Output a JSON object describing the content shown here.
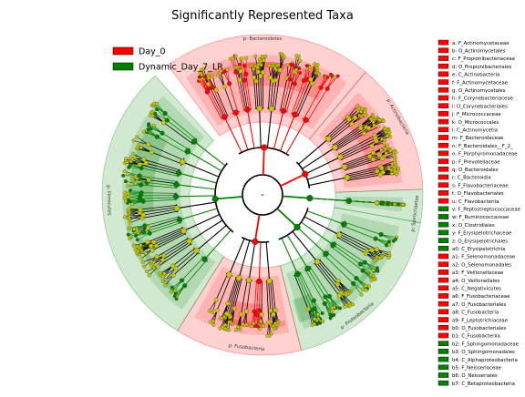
{
  "chart_data": {
    "type": "cladogram",
    "title": "Significantly Represented Taxa",
    "groups": [
      {
        "name": "Day_0",
        "color": "#ff0000"
      },
      {
        "name": "Dynamic_Day_7_LR",
        "color": "#008000"
      }
    ],
    "clade_labels": [
      {
        "text": "p: Bacteroidetes",
        "group": "Day_0"
      },
      {
        "text": "p: Actinobacteria",
        "group": "Day_0"
      },
      {
        "text": "p: Spirochaetes",
        "group": "Dynamic_Day_7_LR"
      },
      {
        "text": "p: Proteobacteria",
        "group": "Dynamic_Day_7_LR"
      },
      {
        "text": "p: Fusobacteria",
        "group": "Day_0"
      },
      {
        "text": "p: Firmicutes",
        "group": "Dynamic_Day_7_LR"
      }
    ],
    "key": [
      {
        "id": "a",
        "taxon": "F_Actinomycetaceae",
        "group": "Day_0"
      },
      {
        "id": "b",
        "taxon": "O_Actinomycetales",
        "group": "Day_0"
      },
      {
        "id": "c",
        "taxon": "F_Propionibacteriaceae",
        "group": "Day_0"
      },
      {
        "id": "d",
        "taxon": "O_Propionibacteriales",
        "group": "Day_0"
      },
      {
        "id": "e",
        "taxon": "C_Actinobacteria",
        "group": "Day_0"
      },
      {
        "id": "f",
        "taxon": "F_Actinomycetaceae",
        "group": "Day_0"
      },
      {
        "id": "g",
        "taxon": "O_Actinomycetales",
        "group": "Day_0"
      },
      {
        "id": "h",
        "taxon": "F_Corynebacteriaceae",
        "group": "Day_0"
      },
      {
        "id": "i",
        "taxon": "O_Corynebacteriales",
        "group": "Day_0"
      },
      {
        "id": "j",
        "taxon": "F_Micrococcaceae",
        "group": "Day_0"
      },
      {
        "id": "k",
        "taxon": "O_Micrococcales",
        "group": "Day_0"
      },
      {
        "id": "l",
        "taxon": "C_Actinomycetia",
        "group": "Day_0"
      },
      {
        "id": "m",
        "taxon": "F_Bacteroidaceae",
        "group": "Day_0"
      },
      {
        "id": "n",
        "taxon": "F_Bacteroidales__F_2_",
        "group": "Day_0"
      },
      {
        "id": "o",
        "taxon": "F_Porphyromonadaceae",
        "group": "Day_0"
      },
      {
        "id": "p",
        "taxon": "F_Prevotellaceae",
        "group": "Day_0"
      },
      {
        "id": "q",
        "taxon": "O_Bacteroidales",
        "group": "Day_0"
      },
      {
        "id": "r",
        "taxon": "C_Bacteroidia",
        "group": "Day_0"
      },
      {
        "id": "s",
        "taxon": "F_Flavobacteriaceae",
        "group": "Day_0"
      },
      {
        "id": "t",
        "taxon": "O_Flavobacteriales",
        "group": "Day_0"
      },
      {
        "id": "u",
        "taxon": "C_Flavobacteriia",
        "group": "Day_0"
      },
      {
        "id": "v",
        "taxon": "F_Peptostreptococcaceae",
        "group": "Dynamic_Day_7_LR"
      },
      {
        "id": "w",
        "taxon": "F_Ruminococcaceae",
        "group": "Dynamic_Day_7_LR"
      },
      {
        "id": "x",
        "taxon": "O_Clostridiales",
        "group": "Dynamic_Day_7_LR"
      },
      {
        "id": "y",
        "taxon": "F_Erysipelotrichaceae",
        "group": "Dynamic_Day_7_LR"
      },
      {
        "id": "z",
        "taxon": "O_Erysipelotrichales",
        "group": "Dynamic_Day_7_LR"
      },
      {
        "id": "a0",
        "taxon": "C_Erysipelotrichia",
        "group": "Dynamic_Day_7_LR"
      },
      {
        "id": "a1",
        "taxon": "F_Selenomonadaceae",
        "group": "Day_0"
      },
      {
        "id": "a2",
        "taxon": "O_Selenomonadales",
        "group": "Day_0"
      },
      {
        "id": "a3",
        "taxon": "F_Veillonellaceae",
        "group": "Day_0"
      },
      {
        "id": "a4",
        "taxon": "O_Veillonellales",
        "group": "Day_0"
      },
      {
        "id": "a5",
        "taxon": "C_Negativicutes",
        "group": "Day_0"
      },
      {
        "id": "a6",
        "taxon": "F_Fusobacteriaceae",
        "group": "Day_0"
      },
      {
        "id": "a7",
        "taxon": "O_Fusobacteriales",
        "group": "Day_0"
      },
      {
        "id": "a8",
        "taxon": "C_Fusobacteria",
        "group": "Day_0"
      },
      {
        "id": "a9",
        "taxon": "F_Leptotrichiaceae",
        "group": "Day_0"
      },
      {
        "id": "b0",
        "taxon": "O_Fusobacteriales",
        "group": "Day_0"
      },
      {
        "id": "b1",
        "taxon": "C_Fusobacteriia",
        "group": "Day_0"
      },
      {
        "id": "b2",
        "taxon": "F_Sphingomonadaceae",
        "group": "Dynamic_Day_7_LR"
      },
      {
        "id": "b3",
        "taxon": "O_Sphingomonadales",
        "group": "Dynamic_Day_7_LR"
      },
      {
        "id": "b4",
        "taxon": "C_Alphaproteobacteria",
        "group": "Dynamic_Day_7_LR"
      },
      {
        "id": "b5",
        "taxon": "F_Neisseriaceae",
        "group": "Dynamic_Day_7_LR"
      },
      {
        "id": "b6",
        "taxon": "O_Neisseriales",
        "group": "Dynamic_Day_7_LR"
      },
      {
        "id": "b7",
        "taxon": "C_Betaproteobacteria",
        "group": "Dynamic_Day_7_LR"
      }
    ]
  }
}
